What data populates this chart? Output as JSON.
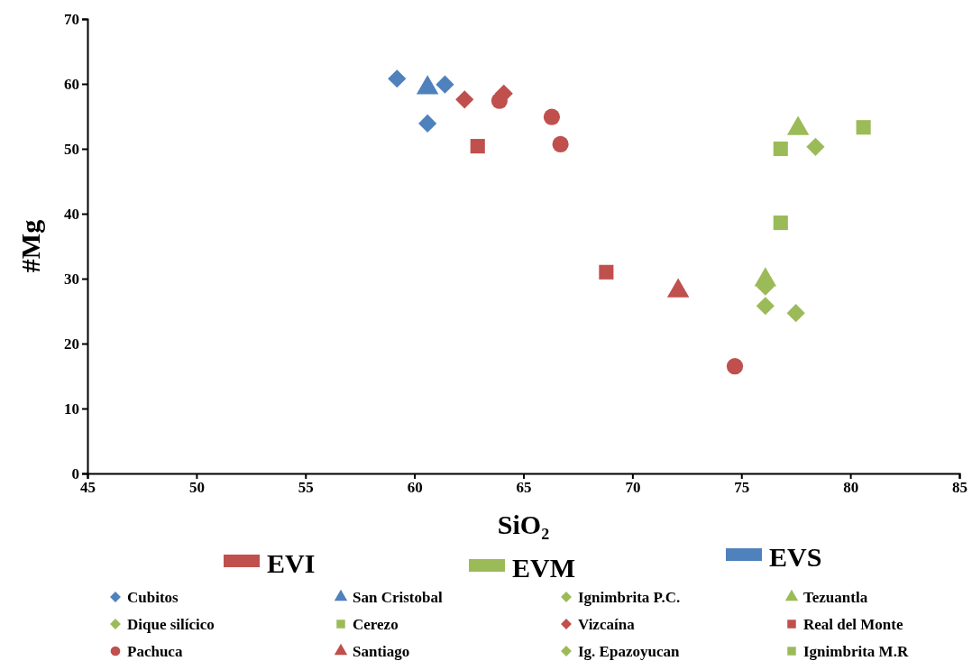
{
  "chart_data": {
    "type": "scatter",
    "xlabel": "SiO₂",
    "ylabel": "#Mg",
    "xlim": [
      45,
      85
    ],
    "xticks": [
      45,
      50,
      55,
      60,
      65,
      70,
      75,
      80,
      85
    ],
    "ylim": [
      0,
      70
    ],
    "yticks": [
      0,
      10,
      20,
      30,
      40,
      50,
      60,
      70
    ],
    "grid": false,
    "legend": "bottom",
    "series": [
      {
        "type": "bar",
        "name": "EVI",
        "color": "#c0504d"
      },
      {
        "type": "bar",
        "name": "EVM",
        "color": "#9bbb59"
      },
      {
        "type": "bar",
        "name": "EVS",
        "color": "#4f81bd"
      },
      {
        "name": "Cubitos",
        "color": "#4f81bd",
        "marker": "diamond",
        "x": [
          59.2,
          60.6,
          61.4
        ],
        "values": [
          60.8,
          53.9,
          59.9
        ]
      },
      {
        "name": "San Cristobal",
        "color": "#4f81bd",
        "marker": "triangle",
        "x": [
          60.6
        ],
        "values": [
          59.4
        ]
      },
      {
        "name": "Ignimbrita P.C.",
        "color": "#9bbb59",
        "marker": "diamond",
        "x": [
          76.1
        ],
        "values": [
          28.8
        ]
      },
      {
        "name": "Tezuantla",
        "color": "#9bbb59",
        "marker": "triangle",
        "x": [
          77.6,
          76.1
        ],
        "values": [
          53.1,
          29.8
        ]
      },
      {
        "name": "Dique silícico",
        "color": "#9bbb59",
        "marker": "diamond",
        "x": [
          78.4
        ],
        "values": [
          50.3
        ]
      },
      {
        "name": "Cerezo",
        "color": "#9bbb59",
        "marker": "square",
        "x": [
          80.6
        ],
        "values": [
          53.3
        ]
      },
      {
        "name": "Vizcaína",
        "color": "#c0504d",
        "marker": "diamond",
        "x": [
          62.3,
          64.1
        ],
        "values": [
          57.6,
          58.5
        ]
      },
      {
        "name": "Real del Monte",
        "color": "#c0504d",
        "marker": "square",
        "x": [
          62.9,
          68.8
        ],
        "values": [
          50.4,
          31.0
        ]
      },
      {
        "name": "Pachuca",
        "color": "#c0504d",
        "marker": "circle",
        "x": [
          63.9,
          66.3,
          66.7,
          74.7
        ],
        "values": [
          57.4,
          54.9,
          50.7,
          16.5
        ]
      },
      {
        "name": "Santiago",
        "color": "#c0504d",
        "marker": "triangle",
        "x": [
          72.1
        ],
        "values": [
          28.1
        ]
      },
      {
        "name": "Ig. Epazoyucan",
        "color": "#9bbb59",
        "marker": "diamond",
        "x": [
          76.1,
          77.5
        ],
        "values": [
          25.8,
          24.7
        ]
      },
      {
        "name": "Ignimbrita M.R",
        "color": "#9bbb59",
        "marker": "square",
        "x": [
          76.8,
          76.8
        ],
        "values": [
          50.0,
          38.6
        ]
      }
    ]
  }
}
